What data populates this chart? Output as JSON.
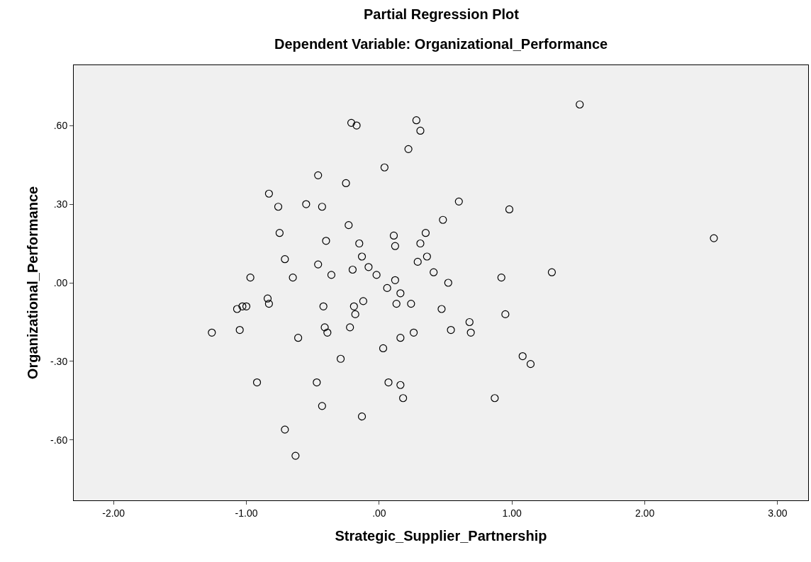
{
  "chart_data": {
    "type": "scatter",
    "title": "Partial Regression Plot",
    "subtitle": "Dependent Variable: Organizational_Performance",
    "xlabel": "Strategic_Supplier_Partnership",
    "ylabel": "Organizational_Performance",
    "marker": "circle",
    "xlim": [
      -2.3,
      3.23
    ],
    "ylim": [
      -0.83,
      0.83
    ],
    "xticks": [
      {
        "value": -2,
        "label": "-2.00"
      },
      {
        "value": -1,
        "label": "-1.00"
      },
      {
        "value": 0,
        "label": ".00"
      },
      {
        "value": 1,
        "label": "1.00"
      },
      {
        "value": 2,
        "label": "2.00"
      },
      {
        "value": 3,
        "label": "3.00"
      }
    ],
    "yticks": [
      {
        "value": -0.6,
        "label": "-.60"
      },
      {
        "value": -0.3,
        "label": "-.30"
      },
      {
        "value": 0,
        "label": ".00"
      },
      {
        "value": 0.3,
        "label": ".30"
      },
      {
        "value": 0.6,
        "label": ".60"
      }
    ],
    "series": [
      {
        "color": "#000000",
        "x": [
          1.51,
          2.52,
          0.28,
          -0.21,
          -0.17,
          0.31,
          0.22,
          0.04,
          -0.46,
          -0.25,
          -0.83,
          0.6,
          -0.76,
          -0.55,
          -0.43,
          0.98,
          0.48,
          -0.23,
          -0.75,
          0.11,
          0.35,
          -0.4,
          -0.15,
          0.31,
          0.12,
          -0.71,
          -0.13,
          0.36,
          0.29,
          -0.08,
          -0.46,
          -0.2,
          -0.36,
          0.41,
          1.3,
          -0.02,
          -0.97,
          -0.65,
          0.92,
          0.12,
          0.52,
          0.06,
          0.16,
          -0.84,
          -0.12,
          -0.83,
          -0.42,
          0.13,
          0.24,
          -1.07,
          -1.03,
          -1.0,
          -0.19,
          0.47,
          -0.18,
          0.95,
          0.68,
          -0.41,
          -0.22,
          -1.26,
          -1.05,
          -0.39,
          0.54,
          0.69,
          0.26,
          -0.61,
          0.16,
          0.03,
          -0.29,
          1.08,
          1.14,
          -0.92,
          -0.47,
          0.07,
          0.16,
          0.18,
          0.87,
          -0.43,
          -0.13,
          -0.71,
          -0.63
        ],
        "values": [
          0.68,
          0.17,
          0.62,
          0.61,
          0.6,
          0.58,
          0.51,
          0.44,
          0.41,
          0.38,
          0.34,
          0.31,
          0.29,
          0.3,
          0.29,
          0.28,
          0.24,
          0.22,
          0.19,
          0.18,
          0.19,
          0.16,
          0.15,
          0.15,
          0.14,
          0.09,
          0.1,
          0.1,
          0.08,
          0.06,
          0.07,
          0.05,
          0.03,
          0.04,
          0.04,
          0.03,
          0.02,
          0.02,
          0.02,
          0.01,
          0.0,
          -0.02,
          -0.04,
          -0.06,
          -0.07,
          -0.08,
          -0.09,
          -0.08,
          -0.08,
          -0.1,
          -0.09,
          -0.09,
          -0.09,
          -0.1,
          -0.12,
          -0.12,
          -0.15,
          -0.17,
          -0.17,
          -0.19,
          -0.18,
          -0.19,
          -0.18,
          -0.19,
          -0.19,
          -0.21,
          -0.21,
          -0.25,
          -0.29,
          -0.28,
          -0.31,
          -0.38,
          -0.38,
          -0.38,
          -0.39,
          -0.44,
          -0.44,
          -0.47,
          -0.51,
          -0.56,
          -0.66
        ]
      }
    ]
  }
}
